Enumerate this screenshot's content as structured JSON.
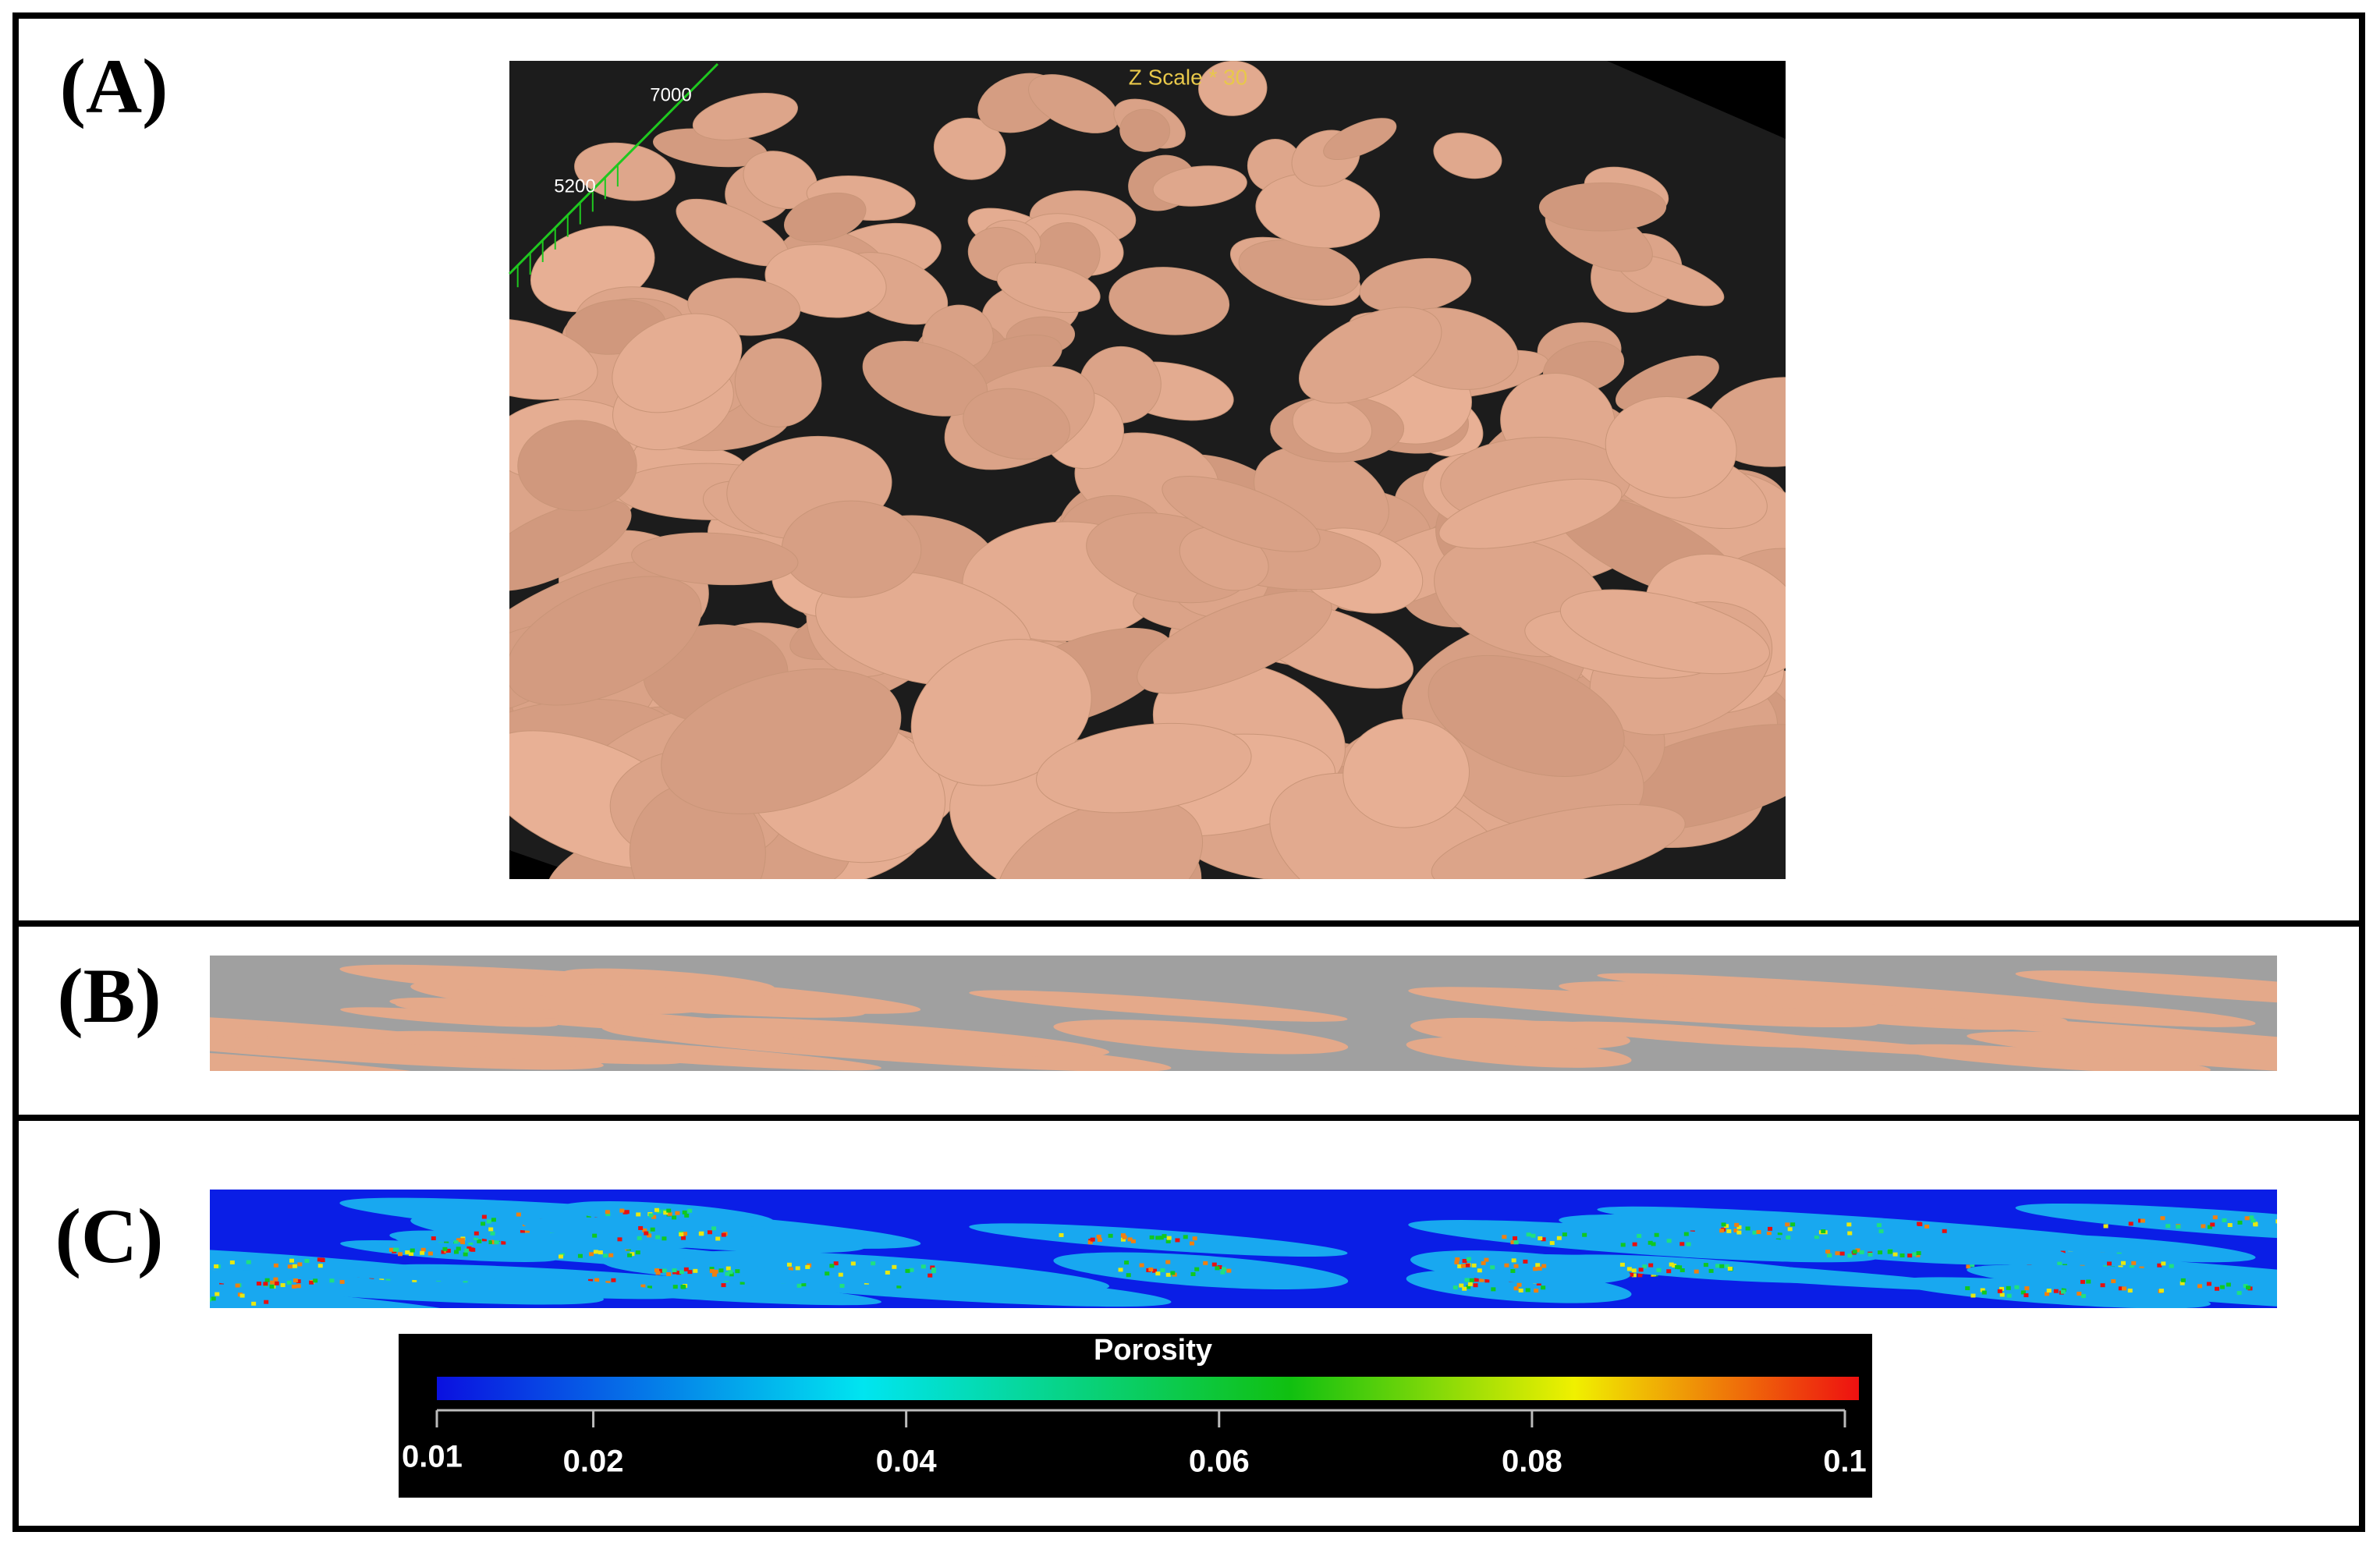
{
  "panels": [
    {
      "label": "(A)",
      "scale_note": "Z Scale * 30",
      "axis_labels": [
        "7000",
        "5200"
      ]
    },
    {
      "label": "(B)"
    },
    {
      "label": "(C)"
    }
  ],
  "colorbar": {
    "title": "Porosity",
    "lim": [
      0.01,
      0.1
    ],
    "ticks": [
      0.01,
      0.02,
      0.04,
      0.06,
      0.08,
      0.1
    ]
  }
}
